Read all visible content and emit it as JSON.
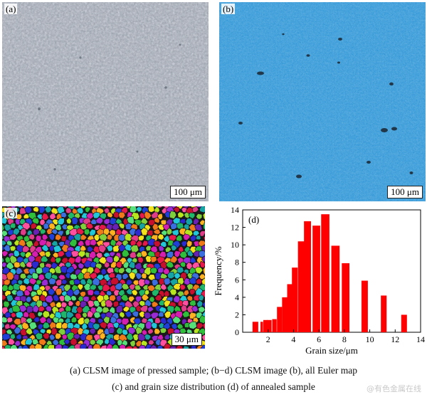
{
  "panels": {
    "a": {
      "label": "(a)",
      "scale": "100 μm"
    },
    "b": {
      "label": "(b)",
      "scale": "100 μm"
    },
    "c": {
      "label": "(c)",
      "scale": "30 μm"
    },
    "d": {
      "label": "(d)"
    }
  },
  "caption": {
    "line1": "(a) CLSM image of pressed sample; (b−d) CLSM image (b), all Euler map",
    "line2": "(c) and grain size distribution (d) of annealed sample"
  },
  "watermark": "@有色金属在线",
  "colors": {
    "bar": "#ff0000",
    "panel_a": "#8d95a1",
    "panel_b": "#2f95d6"
  },
  "chart_data": {
    "type": "bar",
    "xlabel": "Grain size/μm",
    "ylabel": "Frequency/%",
    "xlim": [
      0,
      14
    ],
    "ylim": [
      0,
      14
    ],
    "xticks": [
      2,
      4,
      6,
      8,
      10,
      12,
      14
    ],
    "yticks": [
      0,
      2,
      4,
      6,
      8,
      10,
      12,
      14
    ],
    "x": [
      1.0,
      1.5,
      1.8,
      2.1,
      2.5,
      2.9,
      3.3,
      3.7,
      4.1,
      4.6,
      5.1,
      5.8,
      6.5,
      7.3,
      8.1,
      9.6,
      11.1,
      12.7
    ],
    "values": [
      1.2,
      1.2,
      1.4,
      1.4,
      1.5,
      2.9,
      4.0,
      5.5,
      7.4,
      10.4,
      12.7,
      12.2,
      13.5,
      9.9,
      7.9,
      5.9,
      4.2,
      2.0
    ],
    "widths": [
      0.45,
      0.2,
      0.35,
      0.35,
      0.35,
      0.4,
      0.4,
      0.4,
      0.45,
      0.5,
      0.55,
      0.6,
      0.65,
      0.65,
      0.6,
      0.5,
      0.45,
      0.45
    ]
  }
}
